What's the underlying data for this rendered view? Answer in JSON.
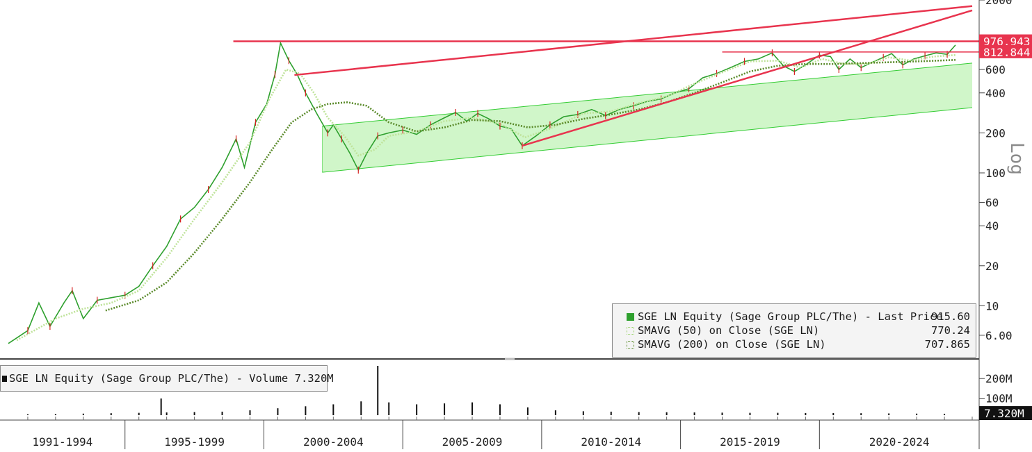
{
  "chart_data": [
    {
      "type": "line",
      "panel": "price",
      "scale": "log",
      "ylim": [
        5,
        2000
      ],
      "y_axis_label": "Log",
      "y_ticks": [
        "2000",
        "600",
        "400",
        "200",
        "100",
        "60",
        "40",
        "20",
        "10",
        "6.00"
      ],
      "x_categories": [
        "1991-1994",
        "1995-1999",
        "2000-2004",
        "2005-2009",
        "2010-2014",
        "2015-2019",
        "2020-2024"
      ],
      "series": [
        {
          "name": "SGE LN Equity (Sage Group PLC/The) - Last Price",
          "legend_value": "915.60",
          "color": "#2ea02e",
          "points": [
            [
              1990.3,
              5.2
            ],
            [
              1991.0,
              6.5
            ],
            [
              1991.4,
              10.5
            ],
            [
              1991.8,
              7.0
            ],
            [
              1992.3,
              10.5
            ],
            [
              1992.6,
              13.0
            ],
            [
              1993.0,
              8.0
            ],
            [
              1993.5,
              11.0
            ],
            [
              1994.0,
              11.5
            ],
            [
              1994.5,
              12.0
            ],
            [
              1995.0,
              14.0
            ],
            [
              1995.5,
              20.0
            ],
            [
              1996.0,
              28.0
            ],
            [
              1996.5,
              45.0
            ],
            [
              1997.0,
              55.0
            ],
            [
              1997.5,
              75.0
            ],
            [
              1998.0,
              110.0
            ],
            [
              1998.5,
              180.0
            ],
            [
              1998.8,
              110.0
            ],
            [
              1999.2,
              240.0
            ],
            [
              1999.6,
              330.0
            ],
            [
              1999.9,
              550.0
            ],
            [
              2000.1,
              950.0
            ],
            [
              2000.4,
              700.0
            ],
            [
              2000.7,
              550.0
            ],
            [
              2001.0,
              400.0
            ],
            [
              2001.4,
              280.0
            ],
            [
              2001.8,
              200.0
            ],
            [
              2002.0,
              230.0
            ],
            [
              2002.3,
              180.0
            ],
            [
              2002.6,
              140.0
            ],
            [
              2002.9,
              105.0
            ],
            [
              2003.2,
              140.0
            ],
            [
              2003.6,
              190.0
            ],
            [
              2004.0,
              200.0
            ],
            [
              2004.5,
              210.0
            ],
            [
              2005.0,
              195.0
            ],
            [
              2005.5,
              230.0
            ],
            [
              2006.0,
              260.0
            ],
            [
              2006.4,
              285.0
            ],
            [
              2006.8,
              245.0
            ],
            [
              2007.2,
              280.0
            ],
            [
              2007.6,
              255.0
            ],
            [
              2008.0,
              225.0
            ],
            [
              2008.4,
              215.0
            ],
            [
              2008.8,
              160.0
            ],
            [
              2009.3,
              190.0
            ],
            [
              2009.8,
              230.0
            ],
            [
              2010.3,
              265.0
            ],
            [
              2010.8,
              275.0
            ],
            [
              2011.3,
              300.0
            ],
            [
              2011.8,
              270.0
            ],
            [
              2012.3,
              300.0
            ],
            [
              2012.8,
              320.0
            ],
            [
              2013.3,
              345.0
            ],
            [
              2013.8,
              360.0
            ],
            [
              2014.3,
              400.0
            ],
            [
              2014.8,
              430.0
            ],
            [
              2015.3,
              520.0
            ],
            [
              2015.8,
              560.0
            ],
            [
              2016.3,
              620.0
            ],
            [
              2016.8,
              690.0
            ],
            [
              2017.3,
              720.0
            ],
            [
              2017.8,
              800.0
            ],
            [
              2018.2,
              640.0
            ],
            [
              2018.6,
              580.0
            ],
            [
              2019.0,
              650.0
            ],
            [
              2019.5,
              770.0
            ],
            [
              2019.9,
              750.0
            ],
            [
              2020.2,
              600.0
            ],
            [
              2020.6,
              720.0
            ],
            [
              2021.0,
              620.0
            ],
            [
              2021.4,
              680.0
            ],
            [
              2021.8,
              740.0
            ],
            [
              2022.1,
              790.0
            ],
            [
              2022.5,
              650.0
            ],
            [
              2022.9,
              720.0
            ],
            [
              2023.3,
              760.0
            ],
            [
              2023.7,
              800.0
            ],
            [
              2024.1,
              780.0
            ],
            [
              2024.4,
              915.6
            ]
          ]
        },
        {
          "name": "SMAVG (50) on Close (SGE LN)",
          "legend_value": "770.24",
          "color": "#bfe39a",
          "style": "dotted",
          "points": [
            [
              1990.6,
              5.5
            ],
            [
              1992.0,
              8.0
            ],
            [
              1993.0,
              9.5
            ],
            [
              1994.0,
              10.5
            ],
            [
              1995.0,
              13.0
            ],
            [
              1996.0,
              23.0
            ],
            [
              1997.0,
              45.0
            ],
            [
              1998.0,
              85.0
            ],
            [
              1999.0,
              170.0
            ],
            [
              1999.7,
              360.0
            ],
            [
              2000.3,
              600.0
            ],
            [
              2000.8,
              560.0
            ],
            [
              2001.3,
              400.0
            ],
            [
              2001.8,
              260.0
            ],
            [
              2002.4,
              190.0
            ],
            [
              2002.9,
              135.0
            ],
            [
              2003.5,
              150.0
            ],
            [
              2004.0,
              190.0
            ],
            [
              2005.0,
              205.0
            ],
            [
              2006.0,
              245.0
            ],
            [
              2007.0,
              260.0
            ],
            [
              2008.0,
              235.0
            ],
            [
              2008.9,
              185.0
            ],
            [
              2009.8,
              215.0
            ],
            [
              2011.0,
              280.0
            ],
            [
              2012.0,
              290.0
            ],
            [
              2013.0,
              335.0
            ],
            [
              2014.0,
              375.0
            ],
            [
              2015.0,
              470.0
            ],
            [
              2016.0,
              570.0
            ],
            [
              2017.0,
              690.0
            ],
            [
              2018.0,
              700.0
            ],
            [
              2018.8,
              620.0
            ],
            [
              2019.6,
              720.0
            ],
            [
              2020.4,
              660.0
            ],
            [
              2021.2,
              660.0
            ],
            [
              2022.0,
              740.0
            ],
            [
              2022.8,
              700.0
            ],
            [
              2023.6,
              750.0
            ],
            [
              2024.4,
              770.24
            ]
          ]
        },
        {
          "name": "SMAVG (200) on Close (SGE LN)",
          "legend_value": "707.865",
          "color": "#5a8a2a",
          "style": "dotted",
          "points": [
            [
              1993.8,
              9.2
            ],
            [
              1995.0,
              11.0
            ],
            [
              1996.0,
              15.0
            ],
            [
              1997.0,
              25.0
            ],
            [
              1998.0,
              45.0
            ],
            [
              1999.0,
              85.0
            ],
            [
              1999.8,
              150.0
            ],
            [
              2000.5,
              240.0
            ],
            [
              2001.2,
              300.0
            ],
            [
              2001.8,
              330.0
            ],
            [
              2002.5,
              340.0
            ],
            [
              2003.2,
              320.0
            ],
            [
              2004.0,
              240.0
            ],
            [
              2005.0,
              205.0
            ],
            [
              2006.0,
              220.0
            ],
            [
              2007.0,
              250.0
            ],
            [
              2008.0,
              245.0
            ],
            [
              2009.0,
              220.0
            ],
            [
              2010.0,
              230.0
            ],
            [
              2011.0,
              255.0
            ],
            [
              2012.0,
              275.0
            ],
            [
              2013.0,
              300.0
            ],
            [
              2014.0,
              340.0
            ],
            [
              2015.0,
              400.0
            ],
            [
              2016.0,
              480.0
            ],
            [
              2017.0,
              580.0
            ],
            [
              2018.0,
              640.0
            ],
            [
              2019.0,
              660.0
            ],
            [
              2020.0,
              660.0
            ],
            [
              2021.0,
              670.0
            ],
            [
              2022.0,
              680.0
            ],
            [
              2023.0,
              690.0
            ],
            [
              2024.4,
              707.865
            ]
          ]
        }
      ],
      "price_labels": [
        {
          "text": "976.943",
          "value": 976.943,
          "color": "#e8344e"
        },
        {
          "text": "812.844",
          "value": 812.844,
          "color": "#e8344e"
        }
      ],
      "annotations": {
        "horizontal_lines": [
          {
            "value": 976.943,
            "from": 1998.4,
            "to": 2025.0,
            "color": "#e8344e"
          },
          {
            "value": 812.844,
            "from": 2016.0,
            "to": 2025.0,
            "color": "#e8344e"
          }
        ],
        "trend_lines": [
          {
            "from": [
              2000.6,
              545
            ],
            "to": [
              2025.0,
              1800
            ],
            "color": "#e8344e"
          },
          {
            "from": [
              2008.8,
              160
            ],
            "to": [
              2025.0,
              1670
            ],
            "color": "#e8344e"
          }
        ],
        "channel": {
          "color": "#c8f5c0",
          "upper": [
            [
              2001.6,
              225
            ],
            [
              2025.0,
              670
            ]
          ],
          "lower": [
            [
              2001.6,
              101
            ],
            [
              2025.0,
              310
            ]
          ]
        }
      }
    },
    {
      "type": "bar",
      "panel": "volume",
      "y_ticks": [
        "200M",
        "100M"
      ],
      "last_value_label": "7.320M",
      "series": [
        {
          "name": "SGE LN Equity (Sage Group PLC/The) - Volume",
          "legend_value": "7.320M",
          "color": "#111111",
          "points": [
            [
              1991,
              5
            ],
            [
              1992,
              6
            ],
            [
              1993,
              8
            ],
            [
              1994,
              10
            ],
            [
              1995,
              12
            ],
            [
              1995.8,
              85
            ],
            [
              1996,
              14
            ],
            [
              1997,
              16
            ],
            [
              1998,
              18
            ],
            [
              1999,
              25
            ],
            [
              2000,
              35
            ],
            [
              2001,
              45
            ],
            [
              2002,
              55
            ],
            [
              2003,
              70
            ],
            [
              2003.6,
              250
            ],
            [
              2004,
              65
            ],
            [
              2005,
              55
            ],
            [
              2006,
              60
            ],
            [
              2007,
              65
            ],
            [
              2008,
              55
            ],
            [
              2009,
              40
            ],
            [
              2010,
              25
            ],
            [
              2011,
              20
            ],
            [
              2012,
              18
            ],
            [
              2013,
              16
            ],
            [
              2014,
              15
            ],
            [
              2015,
              14
            ],
            [
              2016,
              13
            ],
            [
              2017,
              12
            ],
            [
              2018,
              12
            ],
            [
              2019,
              11
            ],
            [
              2020,
              11
            ],
            [
              2021,
              10
            ],
            [
              2022,
              9
            ],
            [
              2023,
              8
            ],
            [
              2024,
              7.32
            ]
          ]
        }
      ]
    }
  ]
}
